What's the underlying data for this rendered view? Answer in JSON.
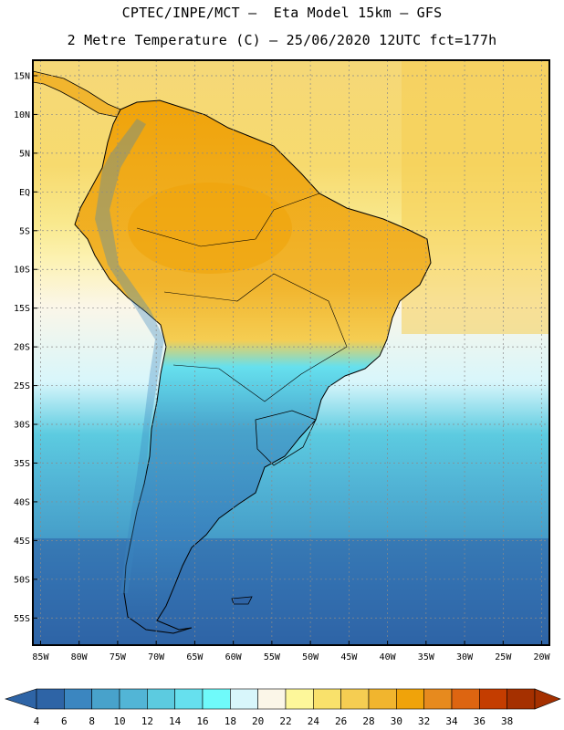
{
  "header": {
    "line1": "CPTEC/INPE/MCT –  Eta Model 15km – GFS",
    "line2": "2 Metre Temperature (C) – 25/06/2020 12UTC fct=177h"
  },
  "map": {
    "lon_range": [
      -86,
      -19
    ],
    "lat_range": [
      -58.5,
      17
    ],
    "lon_ticks": [
      "85W",
      "80W",
      "75W",
      "70W",
      "65W",
      "60W",
      "55W",
      "50W",
      "45W",
      "40W",
      "35W",
      "30W",
      "25W",
      "20W"
    ],
    "lat_ticks": [
      "15N",
      "10N",
      "5N",
      "EQ",
      "5S",
      "10S",
      "15S",
      "20S",
      "25S",
      "30S",
      "35S",
      "40S",
      "45S",
      "50S",
      "55S"
    ],
    "gridlines": true
  },
  "colorbar": {
    "labels": [
      "4",
      "6",
      "8",
      "10",
      "12",
      "14",
      "16",
      "18",
      "20",
      "22",
      "24",
      "26",
      "28",
      "30",
      "32",
      "34",
      "36",
      "38"
    ],
    "colors": [
      "#2e64a6",
      "#3b86c0",
      "#48a2cb",
      "#52b5d6",
      "#5ccbe0",
      "#66e0ee",
      "#6ffafa",
      "#d8f6fb",
      "#fbf6e8",
      "#fdf79a",
      "#f9e16b",
      "#f5cd52",
      "#f1b52e",
      "#f0a30a",
      "#e78a1e",
      "#dd6511",
      "#c43d00",
      "#a53000"
    ]
  }
}
